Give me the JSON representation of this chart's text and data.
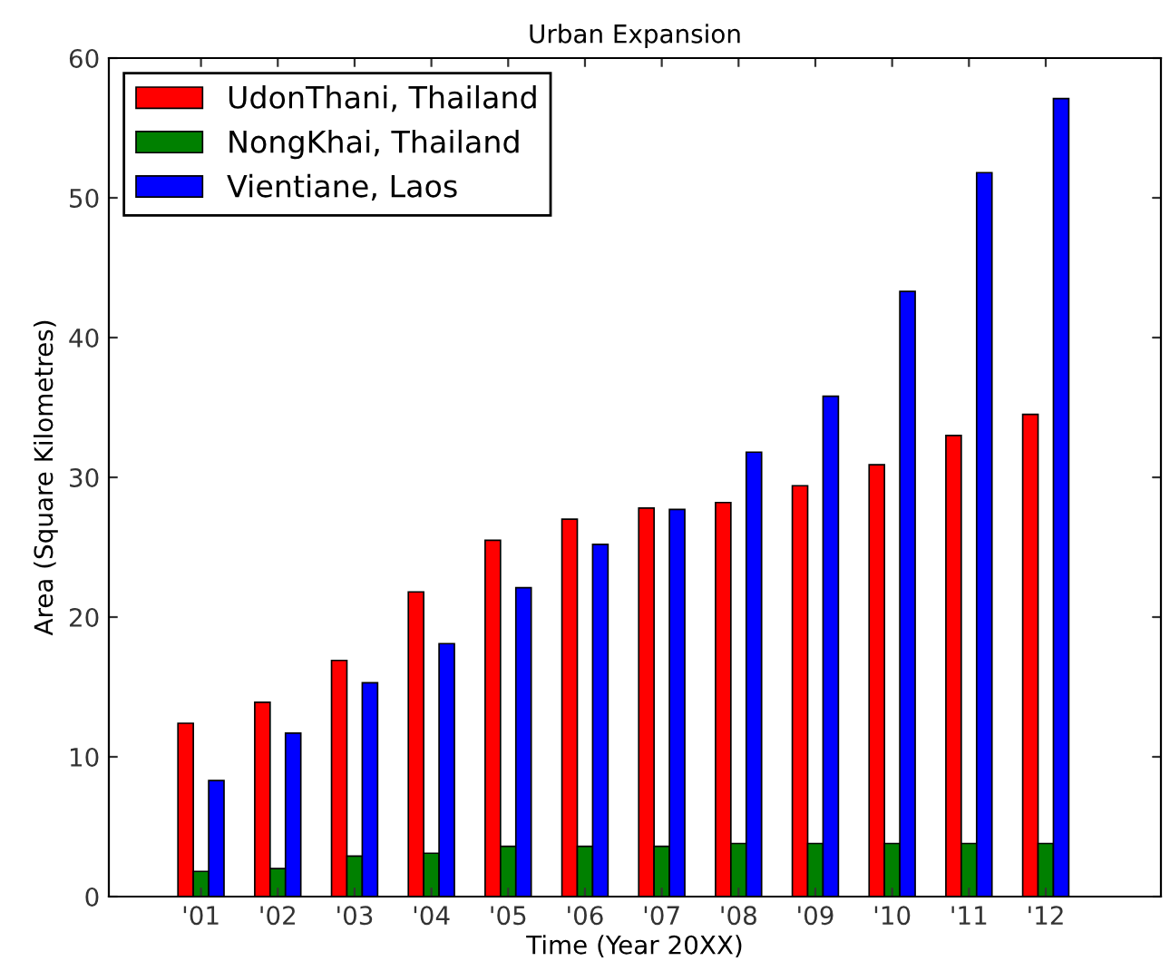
{
  "chart_data": {
    "type": "bar",
    "title": "Urban Expansion",
    "xlabel": "Time (Year 20XX)",
    "ylabel": "Area (Square Kilometres)",
    "categories": [
      "'01",
      "'02",
      "'03",
      "'04",
      "'05",
      "'06",
      "'07",
      "'08",
      "'09",
      "'10",
      "'11",
      "'12"
    ],
    "series": [
      {
        "name": "UdonThani, Thailand",
        "color": "#ff0000",
        "values": [
          12.4,
          13.9,
          16.9,
          21.8,
          25.5,
          27.0,
          27.8,
          28.2,
          29.4,
          30.9,
          33.0,
          34.5
        ]
      },
      {
        "name": "NongKhai, Thailand",
        "color": "#008000",
        "values": [
          1.8,
          2.0,
          2.9,
          3.1,
          3.6,
          3.6,
          3.6,
          3.8,
          3.8,
          3.8,
          3.8,
          3.8
        ]
      },
      {
        "name": "Vientiane, Laos",
        "color": "#0000ff",
        "values": [
          8.3,
          11.7,
          15.3,
          18.1,
          22.1,
          25.2,
          27.7,
          31.8,
          35.8,
          43.3,
          51.8,
          57.1
        ]
      }
    ],
    "ylim": [
      0,
      60
    ],
    "yticks": [
      0,
      10,
      20,
      30,
      40,
      50,
      60
    ],
    "grid": false,
    "legend": "top left"
  }
}
